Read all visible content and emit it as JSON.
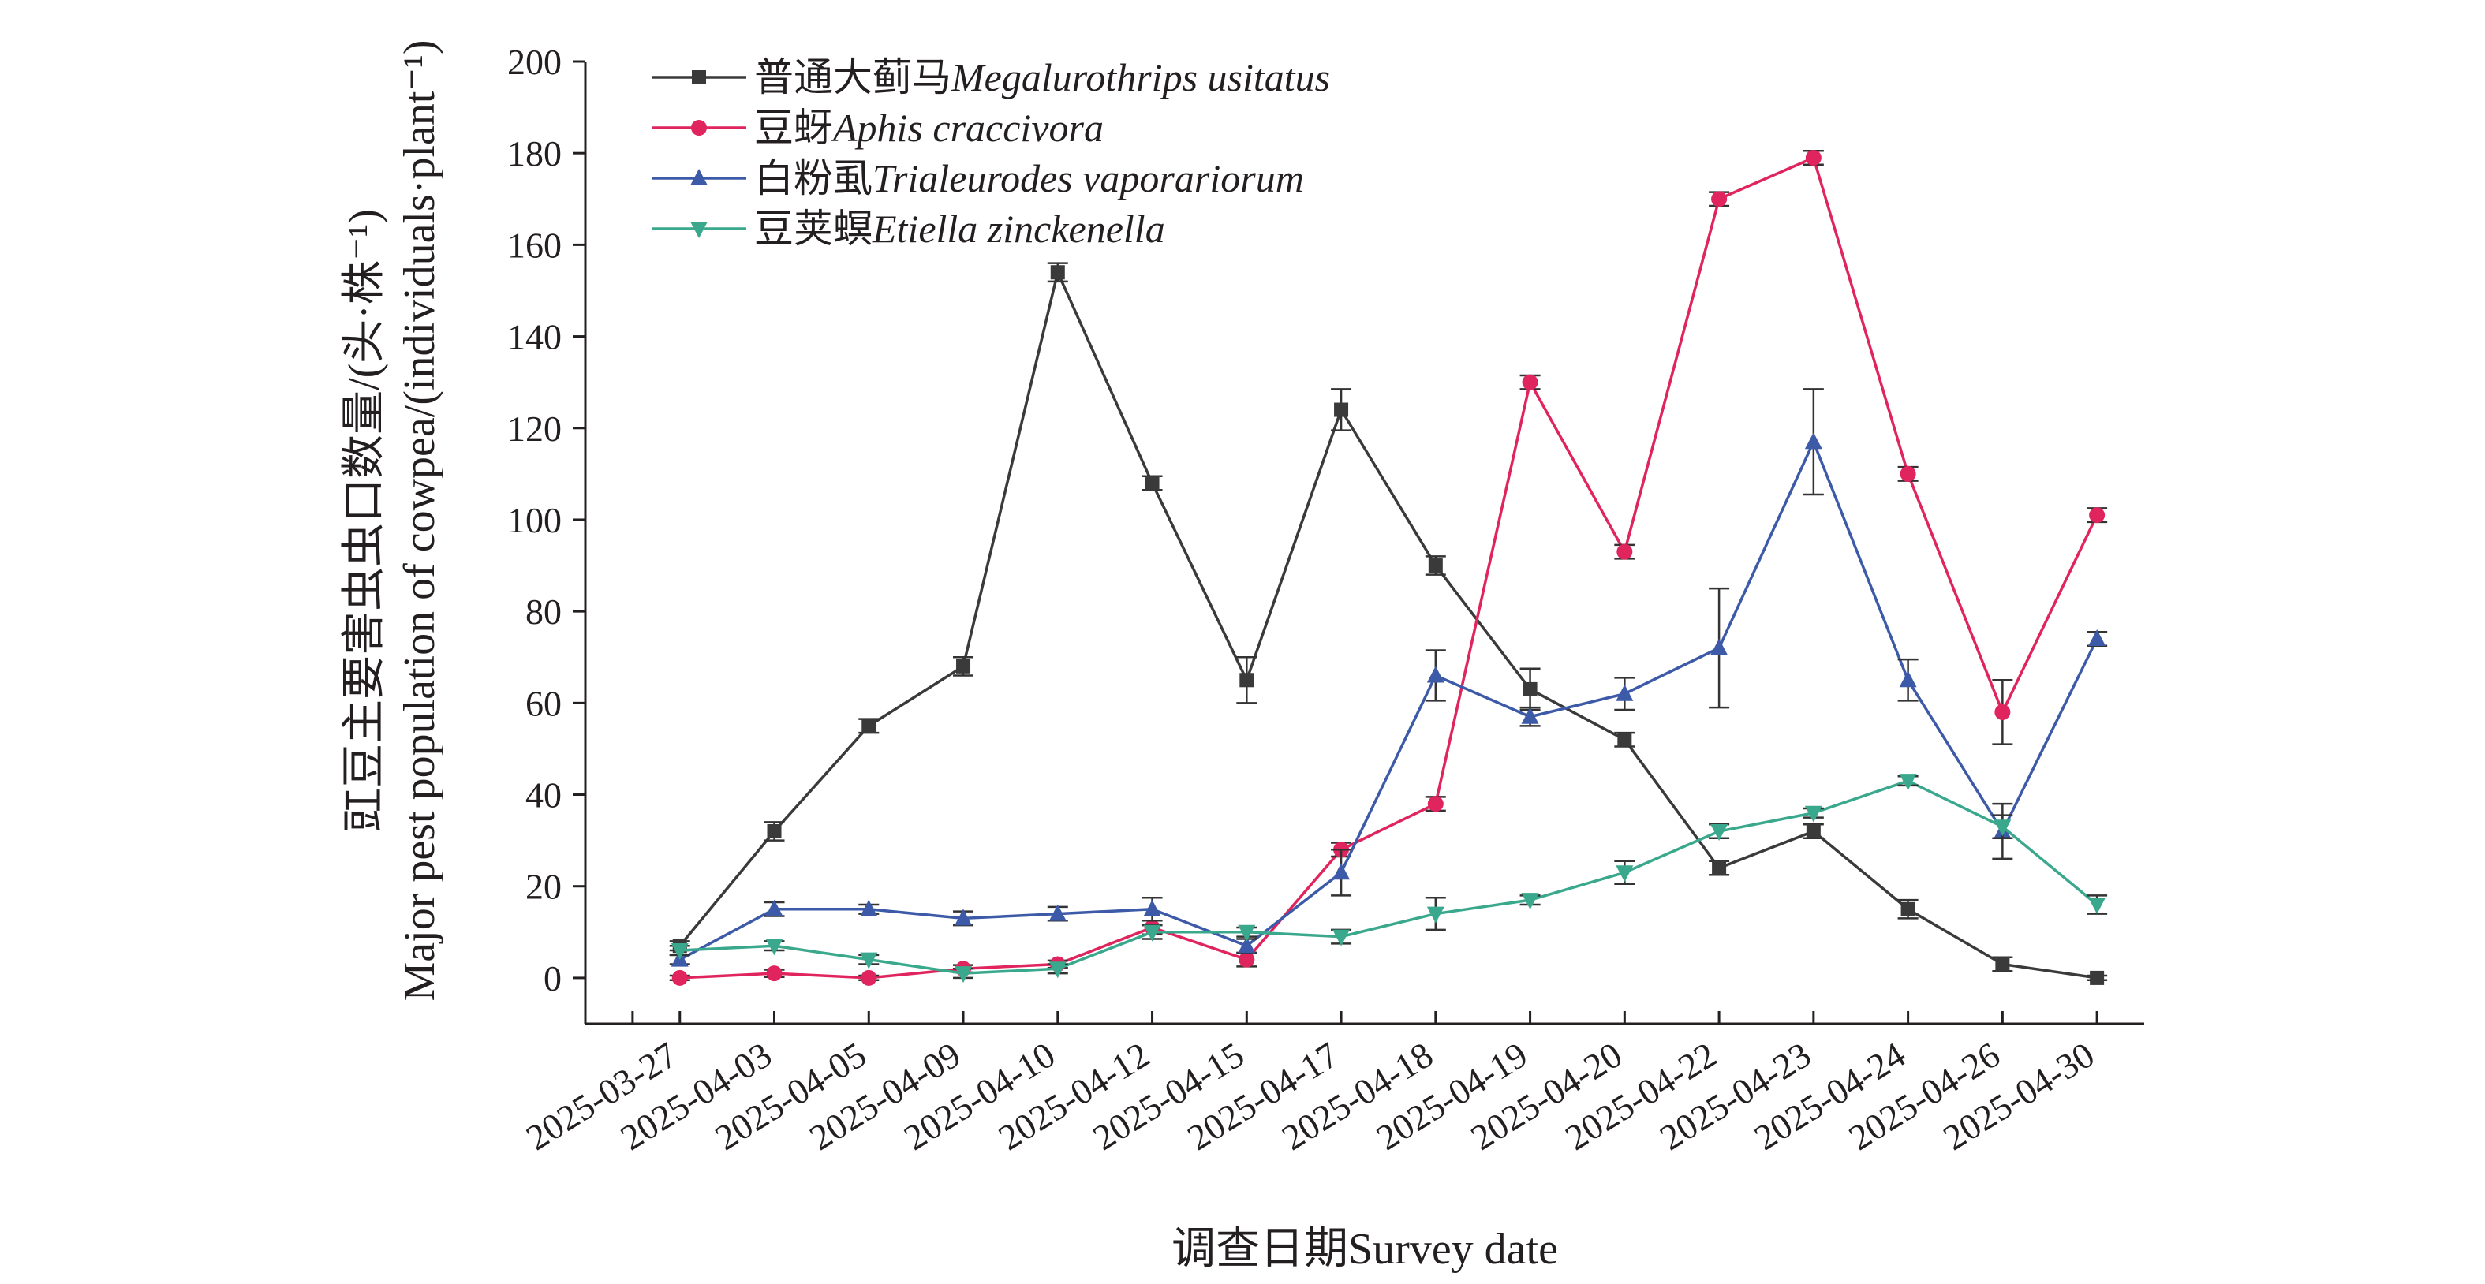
{
  "chart_data": {
    "type": "line",
    "xlabel": "调查日期Survey date",
    "ylabel_lines": [
      "豇豆主要害虫虫口数量/(头·株⁻¹)",
      "Major pest population of cowpea/(individuals·plant⁻¹)"
    ],
    "ylim": [
      -10,
      200
    ],
    "yticks": [
      0,
      20,
      40,
      60,
      80,
      100,
      120,
      140,
      160,
      180,
      200
    ],
    "categories": [
      "2025-03-27",
      "2025-04-03",
      "2025-04-05",
      "2025-04-09",
      "2025-04-10",
      "2025-04-12",
      "2025-04-15",
      "2025-04-17",
      "2025-04-18",
      "2025-04-19",
      "2025-04-20",
      "2025-04-22",
      "2025-04-23",
      "2025-04-24",
      "2025-04-26",
      "2025-04-30"
    ],
    "legend_position": "top-left",
    "grid": false,
    "series": [
      {
        "name_cn": "普通大蓟马",
        "name_sci": "Megalurothrips usitatus",
        "color": "#3a3a3a",
        "marker": "square",
        "values": [
          7,
          32,
          55,
          68,
          154,
          108,
          65,
          124,
          90,
          63,
          52,
          24,
          32,
          15,
          3,
          0
        ],
        "errors": [
          1,
          2,
          1.5,
          2,
          2,
          1.5,
          5,
          4.5,
          2,
          4.5,
          1.5,
          1.5,
          1.5,
          2,
          1.5,
          0.5
        ]
      },
      {
        "name_cn": "豆蚜",
        "name_sci": "Aphis craccivora",
        "color": "#e0245e",
        "marker": "circle",
        "values": [
          0,
          1,
          0,
          2,
          3,
          11,
          4,
          28,
          38,
          130,
          93,
          170,
          179,
          110,
          58,
          101
        ],
        "errors": [
          0.5,
          0.8,
          0.5,
          0.8,
          0.8,
          1.5,
          1.5,
          1.5,
          1.5,
          1.5,
          1.5,
          1.5,
          1.5,
          1.5,
          7,
          1.5
        ]
      },
      {
        "name_cn": "白粉虱",
        "name_sci": "Trialeurodes vaporariorum",
        "color": "#3d5aa8",
        "marker": "triangle-up",
        "values": [
          4,
          15,
          15,
          13,
          14,
          15,
          7,
          23,
          66,
          57,
          62,
          72,
          117,
          65,
          32,
          74
        ],
        "errors": [
          1,
          1.5,
          1,
          1.5,
          1.5,
          2.5,
          1.5,
          5,
          5.5,
          2,
          3.5,
          13,
          11.5,
          4.5,
          6,
          1.5
        ]
      },
      {
        "name_cn": "豆荚螟",
        "name_sci": "Etiella zinckenella",
        "color": "#3aa88c",
        "marker": "triangle-down",
        "values": [
          6,
          7,
          4,
          1,
          2,
          10,
          10,
          9,
          14,
          17,
          23,
          32,
          36,
          43,
          33,
          16
        ],
        "errors": [
          1,
          1,
          1,
          1,
          1,
          1.5,
          1,
          1.5,
          3.5,
          1,
          2.5,
          1.5,
          1,
          1,
          2.5,
          2
        ]
      }
    ]
  }
}
